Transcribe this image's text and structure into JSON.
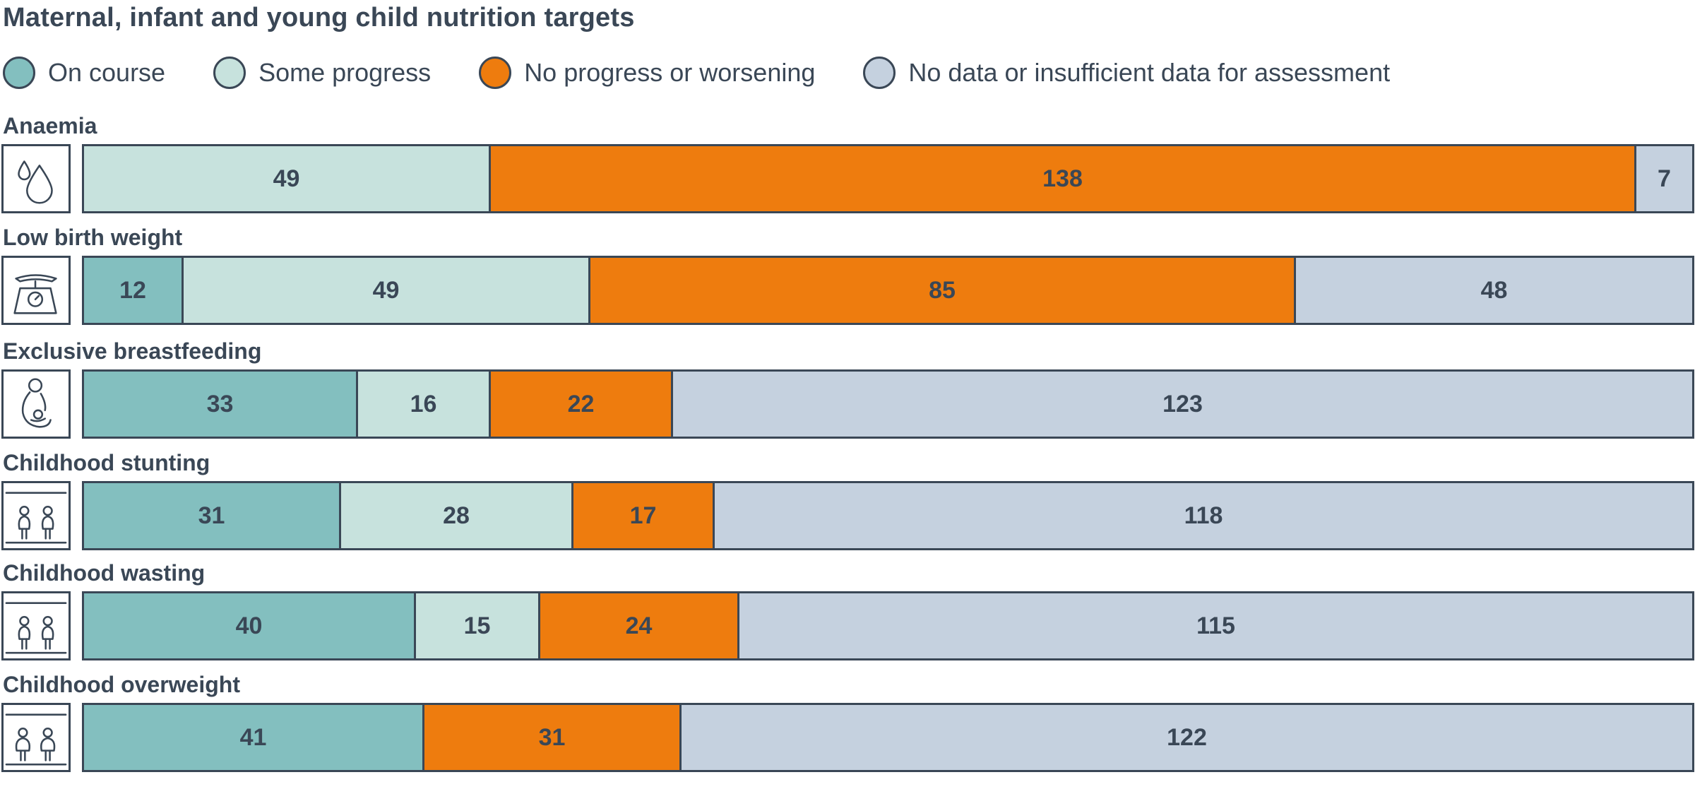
{
  "chart_data": {
    "type": "bar",
    "orientation": "horizontal",
    "stacked": true,
    "title": "Maternal, infant and young child nutrition targets",
    "legend_placement": "top",
    "grid": false,
    "xlim": [
      0,
      194
    ],
    "series": [
      {
        "name": "On course",
        "color": "#83bfbf"
      },
      {
        "name": "Some progress",
        "color": "#c7e2dd"
      },
      {
        "name": "No progress or worsening",
        "color": "#ee7c0e"
      },
      {
        "name": "No data or insufficient data for assessment",
        "color": "#c5d1df"
      }
    ],
    "categories": [
      {
        "name": "Anaemia",
        "icon": "water-drops-icon",
        "values": [
          0,
          49,
          138,
          7
        ]
      },
      {
        "name": "Low birth weight",
        "icon": "baby-scale-icon",
        "values": [
          12,
          49,
          85,
          48
        ]
      },
      {
        "name": "Exclusive breastfeeding",
        "icon": "breastfeeding-icon",
        "values": [
          33,
          16,
          22,
          123
        ]
      },
      {
        "name": "Childhood stunting",
        "icon": "children-height-icon",
        "values": [
          31,
          28,
          17,
          118
        ]
      },
      {
        "name": "Childhood wasting",
        "icon": "children-thin-icon",
        "values": [
          40,
          15,
          24,
          115
        ]
      },
      {
        "name": "Childhood overweight",
        "icon": "children-overweight-icon",
        "values": [
          41,
          0,
          31,
          122
        ]
      }
    ]
  },
  "colors": {
    "text": "#3a4756",
    "border": "#3a4756"
  }
}
